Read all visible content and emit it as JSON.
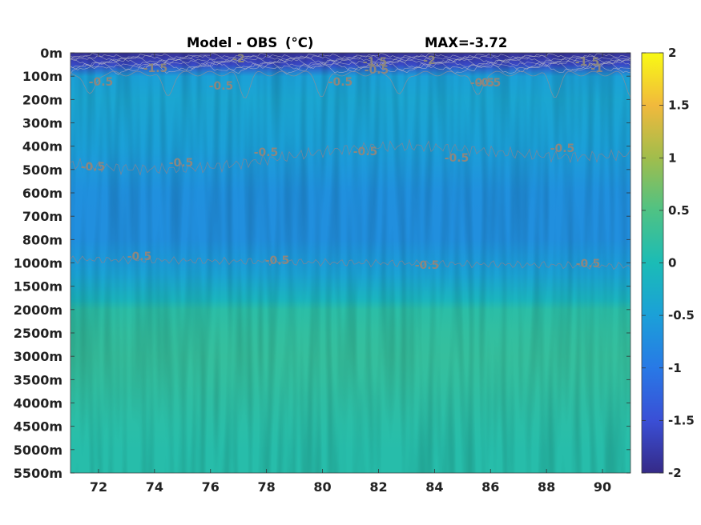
{
  "chart_data": {
    "type": "heatmap",
    "title": "Model - OBS",
    "title_unit": "(°C)",
    "max_label": "MAX=-3.72",
    "x_ticks": [
      "72",
      "74",
      "76",
      "78",
      "80",
      "82",
      "84",
      "86",
      "88",
      "90"
    ],
    "x_tick_values": [
      72,
      74,
      76,
      78,
      80,
      82,
      84,
      86,
      88,
      90
    ],
    "xlim": [
      71,
      91
    ],
    "y_ticks": [
      "0m",
      "100m",
      "200m",
      "300m",
      "400m",
      "500m",
      "600m",
      "700m",
      "800m",
      "1000m",
      "1500m",
      "2000m",
      "2500m",
      "3000m",
      "3500m",
      "4000m",
      "4500m",
      "5000m",
      "5500m"
    ],
    "colorbar": {
      "ticks": [
        "2",
        "1.5",
        "1",
        "0.5",
        "0",
        "-0.5",
        "-1",
        "-1.5",
        "-2"
      ],
      "tick_values": [
        2,
        1.5,
        1,
        0.5,
        0,
        -0.5,
        -1,
        -1.5,
        -2
      ],
      "range": [
        -2,
        2
      ],
      "colormap": "parula"
    },
    "depth_profile": {
      "depth_index": [
        0,
        0.5,
        1,
        2,
        3,
        4,
        5,
        6,
        7,
        8,
        9,
        9.5,
        10,
        10.6,
        11,
        12,
        13,
        14,
        15,
        16,
        17,
        18
      ],
      "value": [
        -1.9,
        -1.6,
        -0.5,
        -0.4,
        -0.45,
        -0.5,
        -0.6,
        -0.7,
        -0.72,
        -0.72,
        -0.55,
        -0.45,
        -0.3,
        -0.12,
        0.15,
        0.22,
        0.25,
        0.22,
        0.18,
        0.14,
        0.12,
        0.12
      ]
    },
    "contour_labels": [
      "-1.5",
      "-2",
      "-0.5",
      "-0.5",
      "-0.5",
      "-0.5",
      "-1.5",
      "-2",
      "-0.5",
      "-1.5",
      "-1",
      "-0.5",
      "-0.5",
      "-0.5",
      "-0.5",
      "-0.5",
      "-0.5",
      "-0.5",
      "-0.5",
      "-0.5",
      "-0.5",
      "-0.5"
    ]
  }
}
